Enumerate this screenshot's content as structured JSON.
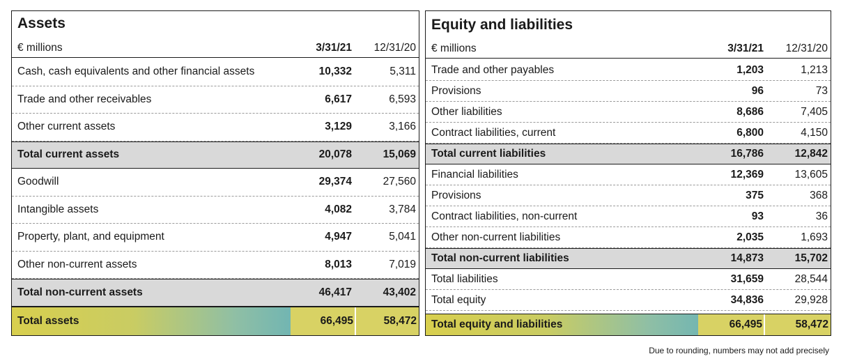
{
  "assets": {
    "title": "Assets",
    "unit": "€ millions",
    "col1": "3/31/21",
    "col2": "12/31/20",
    "rows": [
      {
        "label": "Cash, cash equivalents and other financial assets",
        "v1": "10,332",
        "v2": "5,311",
        "total": false
      },
      {
        "label": "Trade and other receivables",
        "v1": "6,617",
        "v2": "6,593",
        "total": false
      },
      {
        "label": "Other current assets",
        "v1": "3,129",
        "v2": "3,166",
        "total": false
      },
      {
        "label": "Total current assets",
        "v1": "20,078",
        "v2": "15,069",
        "total": true
      },
      {
        "label": "Goodwill",
        "v1": "29,374",
        "v2": "27,560",
        "total": false
      },
      {
        "label": "Intangible assets",
        "v1": "4,082",
        "v2": "3,784",
        "total": false
      },
      {
        "label": "Property, plant, and equipment",
        "v1": "4,947",
        "v2": "5,041",
        "total": false
      },
      {
        "label": "Other non-current assets",
        "v1": "8,013",
        "v2": "7,019",
        "total": false
      },
      {
        "label": "Total non-current assets",
        "v1": "46,417",
        "v2": "43,402",
        "total": true
      }
    ],
    "grand": {
      "label": "Total assets",
      "v1": "66,495",
      "v2": "58,472"
    }
  },
  "equity": {
    "title": "Equity and liabilities",
    "unit": "€ millions",
    "col1": "3/31/21",
    "col2": "12/31/20",
    "rows": [
      {
        "label": "Trade and other payables",
        "v1": "1,203",
        "v2": "1,213",
        "total": false
      },
      {
        "label": "Provisions",
        "v1": "96",
        "v2": "73",
        "total": false
      },
      {
        "label": "Other liabilities",
        "v1": "8,686",
        "v2": "7,405",
        "total": false
      },
      {
        "label": "Contract liabilities, current",
        "v1": "6,800",
        "v2": "4,150",
        "total": false
      },
      {
        "label": "Total current liabilities",
        "v1": "16,786",
        "v2": "12,842",
        "total": true
      },
      {
        "label": "Financial liabilities",
        "v1": "12,369",
        "v2": "13,605",
        "total": false
      },
      {
        "label": "Provisions",
        "v1": "375",
        "v2": "368",
        "total": false
      },
      {
        "label": "Contract liabilities, non-current",
        "v1": "93",
        "v2": "36",
        "total": false
      },
      {
        "label": "Other non-current liabilities",
        "v1": "2,035",
        "v2": "1,693",
        "total": false
      },
      {
        "label": "Total non-current liabilities",
        "v1": "14,873",
        "v2": "15,702",
        "total": true
      },
      {
        "label": "Total liabilities",
        "v1": "31,659",
        "v2": "28,544",
        "total": false
      },
      {
        "label": "Total equity",
        "v1": "34,836",
        "v2": "29,928",
        "total": false
      }
    ],
    "grand": {
      "label": "Total equity and liabilities",
      "v1": "66,495",
      "v2": "58,472"
    }
  },
  "footnote": "Due to rounding, numbers may not add precisely"
}
